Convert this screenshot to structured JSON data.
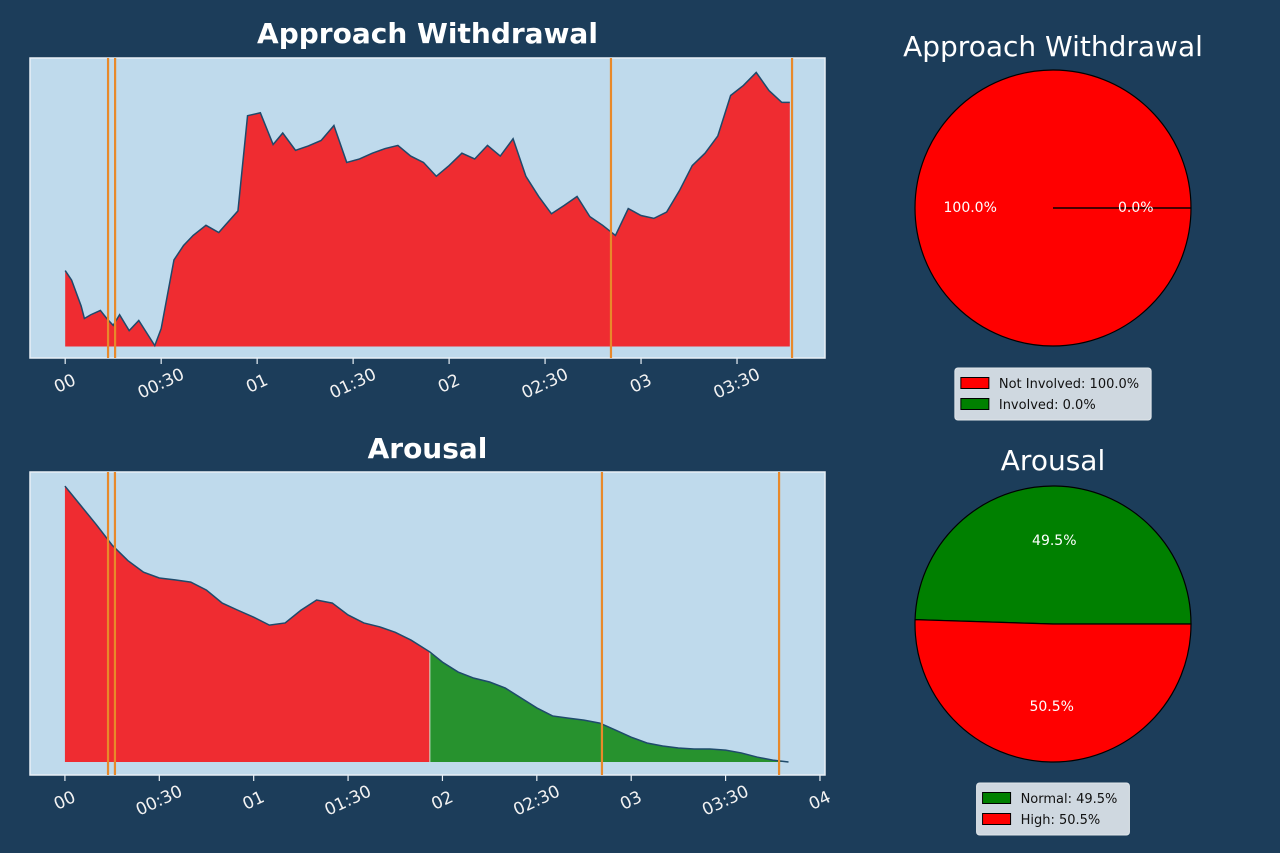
{
  "chart_data": [
    {
      "type": "area",
      "title": "Approach Withdrawal",
      "x": [
        0,
        2,
        5,
        6,
        8,
        11,
        13,
        15,
        17,
        20,
        23,
        26,
        28,
        30,
        34,
        37,
        40,
        44,
        48,
        50,
        54,
        57,
        61,
        65,
        68,
        72,
        76,
        80,
        84,
        88,
        92,
        96,
        100,
        104,
        108,
        112,
        116,
        120,
        124,
        128,
        132,
        136,
        140,
        144,
        148,
        152,
        156,
        160,
        164,
        168,
        172,
        176,
        180,
        184,
        188,
        192,
        196,
        200,
        204,
        208,
        212,
        216,
        220,
        224,
        226.5
      ],
      "values": [
        26.3,
        23,
        14,
        9.7,
        11,
        12.5,
        9.7,
        7.3,
        11,
        5.5,
        9,
        3.8,
        0.3,
        6.2,
        30,
        35,
        38.5,
        42,
        39.5,
        42,
        47,
        80,
        81,
        70,
        74,
        68,
        69.5,
        71.4,
        76.6,
        63.8,
        65,
        67,
        68.6,
        69.7,
        66,
        63.8,
        59,
        62.7,
        67,
        65,
        69.7,
        66,
        72,
        59,
        52,
        46,
        48.9,
        52,
        45,
        42,
        38.5,
        47.8,
        45.4,
        44.4,
        46.6,
        54,
        62.7,
        67,
        73,
        87,
        90.5,
        95,
        88.7,
        84.6,
        84.6
      ],
      "colors": [
        "#ef2c31"
      ],
      "line_color": "#1f4a6b",
      "xlim": [
        -11,
        237.5
      ],
      "ylim": [
        -4,
        100
      ],
      "xticks": [
        {
          "value": 0,
          "label": "00"
        },
        {
          "value": 30,
          "label": "00:30"
        },
        {
          "value": 60,
          "label": "01"
        },
        {
          "value": 90,
          "label": "01:30"
        },
        {
          "value": 120,
          "label": "02"
        },
        {
          "value": 150,
          "label": "02:30"
        },
        {
          "value": 180,
          "label": "03"
        },
        {
          "value": 210,
          "label": "03:30"
        }
      ],
      "markers": [
        13.4,
        15.6,
        170.6,
        227.2
      ],
      "marker_color": "#e8892a"
    },
    {
      "type": "area",
      "title": "Arousal",
      "x": [
        0,
        5,
        10,
        15,
        20,
        25,
        30,
        35,
        40,
        45,
        50,
        55,
        60,
        65,
        70,
        75,
        80,
        85,
        90,
        95,
        100,
        105,
        110,
        116,
        120,
        125,
        130,
        135,
        140,
        145,
        150,
        155,
        160,
        165,
        170,
        175,
        180,
        185,
        190,
        195,
        200,
        205,
        210,
        215,
        220,
        225,
        230
      ],
      "values": [
        100,
        93,
        86,
        78.6,
        73,
        68.8,
        66.7,
        66,
        65.2,
        62.3,
        57.6,
        55,
        52.5,
        49.6,
        50.4,
        55,
        58.7,
        57.6,
        53.3,
        50.4,
        49,
        47,
        44.2,
        39.9,
        36.2,
        32.6,
        30.4,
        29,
        26.8,
        23.2,
        19.6,
        16.7,
        15.9,
        15.2,
        14.1,
        11.6,
        9,
        6.9,
        5.8,
        5.1,
        4.7,
        4.7,
        4.3,
        3.3,
        1.8,
        0.7,
        0
      ],
      "split_x": 116,
      "colors": [
        "#ef2c31",
        "#27922e"
      ],
      "line_color": "#1f4a6b",
      "xlim": [
        -11.1,
        241.6
      ],
      "ylim": [
        -4.7,
        105.1
      ],
      "xticks": [
        {
          "value": 0,
          "label": "00"
        },
        {
          "value": 30,
          "label": "00:30"
        },
        {
          "value": 60,
          "label": "01"
        },
        {
          "value": 90,
          "label": "01:30"
        },
        {
          "value": 120,
          "label": "02"
        },
        {
          "value": 150,
          "label": "02:30"
        },
        {
          "value": 180,
          "label": "03"
        },
        {
          "value": 210,
          "label": "03:30"
        },
        {
          "value": 240,
          "label": "04"
        }
      ],
      "markers": [
        13.7,
        15.9,
        170.7,
        227
      ],
      "marker_color": "#e8892a"
    },
    {
      "type": "pie",
      "title": "Approach Withdrawal",
      "values": [
        100,
        0
      ],
      "value_labels": [
        "100.0%",
        "0.0%"
      ],
      "legend": [
        "Not Involved: 100.0%",
        "Involved: 0.0%"
      ],
      "colors": [
        "#ff0000",
        "#008000"
      ]
    },
    {
      "type": "pie",
      "title": "Arousal",
      "values": [
        49.5,
        50.5
      ],
      "value_labels": [
        "49.5%",
        "50.5%"
      ],
      "legend": [
        "Normal: 49.5%",
        "High: 50.5%"
      ],
      "colors": [
        "#008000",
        "#ff0000"
      ]
    }
  ]
}
